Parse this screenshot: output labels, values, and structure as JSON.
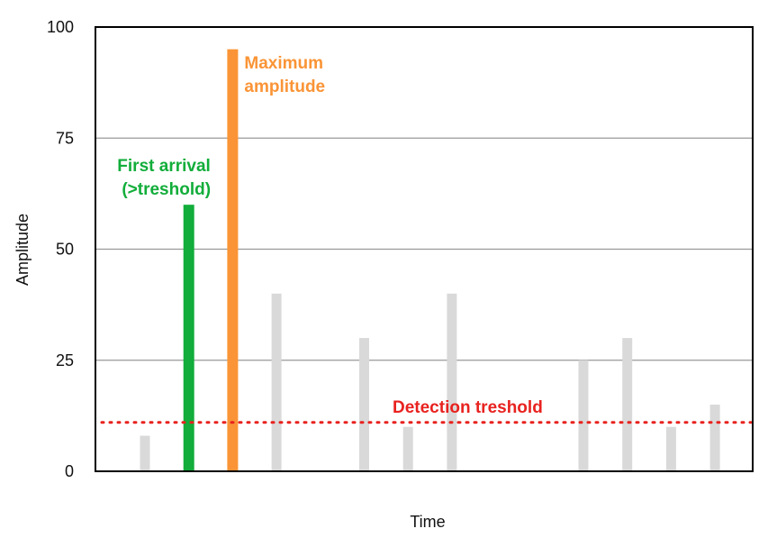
{
  "chart_data": {
    "type": "bar",
    "xlabel": "Time",
    "ylabel": "Amplitude",
    "ylim": [
      0,
      100
    ],
    "yticks": [
      "0",
      "25",
      "50",
      "75",
      "100"
    ],
    "grid": true,
    "bars": [
      {
        "t": 1,
        "value": 8,
        "role": "other"
      },
      {
        "t": 2,
        "value": 60,
        "role": "first_arrival"
      },
      {
        "t": 3,
        "value": 95,
        "role": "maximum"
      },
      {
        "t": 4,
        "value": 40,
        "role": "other"
      },
      {
        "t": 6,
        "value": 30,
        "role": "other"
      },
      {
        "t": 7,
        "value": 10,
        "role": "other"
      },
      {
        "t": 8,
        "value": 40,
        "role": "other"
      },
      {
        "t": 11,
        "value": 25,
        "role": "other"
      },
      {
        "t": 12,
        "value": 30,
        "role": "other"
      },
      {
        "t": 13,
        "value": 10,
        "role": "other"
      },
      {
        "t": 14,
        "value": 15,
        "role": "other"
      }
    ],
    "threshold": {
      "value": 11,
      "label": "Detection treshold"
    },
    "annotations": {
      "first_arrival": [
        "First arrival",
        "(>treshold)"
      ],
      "maximum": [
        "Maximum",
        "amplitude"
      ]
    },
    "colors": {
      "other": "#d9d9d9",
      "first_arrival": "#12ad3a",
      "maximum": "#fa9436",
      "threshold": "#e8221f",
      "grid": "#999999",
      "axis": "#000000"
    }
  }
}
